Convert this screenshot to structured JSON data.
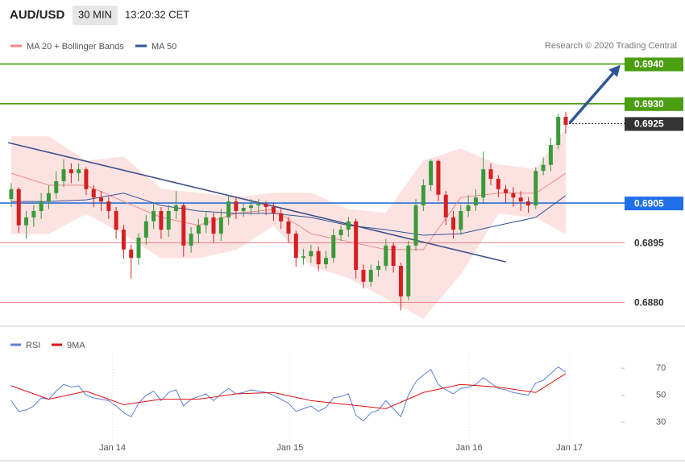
{
  "header": {
    "symbol": "AUD/USD",
    "timeframe": "30 MIN",
    "time": "13:20:32 CET",
    "credit": "Research © 2020 Trading Central"
  },
  "chart_data": [
    {
      "type": "candlestick",
      "ylim": [
        0.6874,
        0.6948
      ],
      "xlim": [
        -1.5,
        81.85
      ],
      "candles": [
        [
          0.6906,
          0.691,
          0.6904,
          0.69085
        ],
        [
          0.69085,
          0.6909,
          0.68975,
          0.68994
        ],
        [
          0.68994,
          0.6903,
          0.6896,
          0.69014
        ],
        [
          0.69014,
          0.69045,
          0.6899,
          0.6903
        ],
        [
          0.6903,
          0.69075,
          0.6901,
          0.69054
        ],
        [
          0.69054,
          0.69095,
          0.69035,
          0.69075
        ],
        [
          0.69075,
          0.6913,
          0.6906,
          0.69105
        ],
        [
          0.69105,
          0.6916,
          0.6909,
          0.69135
        ],
        [
          0.69135,
          0.6915,
          0.691,
          0.69125
        ],
        [
          0.69125,
          0.6915,
          0.69105,
          0.69135
        ],
        [
          0.69135,
          0.6914,
          0.6907,
          0.69085
        ],
        [
          0.69085,
          0.69095,
          0.6904,
          0.69064
        ],
        [
          0.69064,
          0.6908,
          0.6903,
          0.69054
        ],
        [
          0.69054,
          0.69065,
          0.6901,
          0.6903
        ],
        [
          0.6903,
          0.6904,
          0.6896,
          0.68983
        ],
        [
          0.68983,
          0.68995,
          0.6891,
          0.68933
        ],
        [
          0.68933,
          0.68945,
          0.6886,
          0.68912
        ],
        [
          0.68912,
          0.68975,
          0.68895,
          0.68963
        ],
        [
          0.68963,
          0.6902,
          0.68945,
          0.69004
        ],
        [
          0.69004,
          0.6905,
          0.68985,
          0.6903
        ],
        [
          0.6903,
          0.6904,
          0.6896,
          0.68983
        ],
        [
          0.68983,
          0.69045,
          0.68965,
          0.6903
        ],
        [
          0.6903,
          0.6908,
          0.6901,
          0.69044
        ],
        [
          0.69044,
          0.6905,
          0.68915,
          0.68943
        ],
        [
          0.68943,
          0.6899,
          0.68925,
          0.68973
        ],
        [
          0.68973,
          0.6901,
          0.6895,
          0.68994
        ],
        [
          0.68994,
          0.6903,
          0.68975,
          0.69014
        ],
        [
          0.69014,
          0.69025,
          0.6895,
          0.68973
        ],
        [
          0.68973,
          0.69035,
          0.68955,
          0.69014
        ],
        [
          0.69014,
          0.6907,
          0.68995,
          0.69054
        ],
        [
          0.69054,
          0.69065,
          0.6901,
          0.6903
        ],
        [
          0.6903,
          0.6905,
          0.69015,
          0.69038
        ],
        [
          0.69038,
          0.6906,
          0.6902,
          0.69044
        ],
        [
          0.69044,
          0.6906,
          0.69025,
          0.69048
        ],
        [
          0.69048,
          0.69055,
          0.6902,
          0.6904
        ],
        [
          0.6904,
          0.6905,
          0.69005,
          0.69024
        ],
        [
          0.69024,
          0.69035,
          0.68985,
          0.69004
        ],
        [
          0.69004,
          0.69015,
          0.6895,
          0.68973
        ],
        [
          0.68973,
          0.6898,
          0.6889,
          0.68912
        ],
        [
          0.68912,
          0.68935,
          0.68895,
          0.68916
        ],
        [
          0.68916,
          0.68945,
          0.689,
          0.68929
        ],
        [
          0.68929,
          0.6894,
          0.6888,
          0.68896
        ],
        [
          0.68896,
          0.6893,
          0.68885,
          0.68912
        ],
        [
          0.68912,
          0.68985,
          0.689,
          0.68969
        ],
        [
          0.68969,
          0.68995,
          0.68955,
          0.68983
        ],
        [
          0.68983,
          0.69015,
          0.68965,
          0.69004
        ],
        [
          0.69004,
          0.6901,
          0.6886,
          0.68882
        ],
        [
          0.68882,
          0.68895,
          0.68835,
          0.68852
        ],
        [
          0.68852,
          0.68895,
          0.6884,
          0.68882
        ],
        [
          0.68882,
          0.68905,
          0.68865,
          0.68892
        ],
        [
          0.68892,
          0.6896,
          0.6888,
          0.68943
        ],
        [
          0.68943,
          0.6895,
          0.68875,
          0.68892
        ],
        [
          0.68892,
          0.689,
          0.6878,
          0.68815
        ],
        [
          0.68815,
          0.68955,
          0.68805,
          0.68943
        ],
        [
          0.68943,
          0.6906,
          0.6893,
          0.69044
        ],
        [
          0.69044,
          0.6911,
          0.6903,
          0.69095
        ],
        [
          0.69095,
          0.6916,
          0.6908,
          0.69156
        ],
        [
          0.69156,
          0.6916,
          0.69055,
          0.69071
        ],
        [
          0.69071,
          0.6908,
          0.68995,
          0.69014
        ],
        [
          0.69014,
          0.6903,
          0.6896,
          0.68983
        ],
        [
          0.68983,
          0.69045,
          0.6897,
          0.6903
        ],
        [
          0.6903,
          0.6907,
          0.69015,
          0.69044
        ],
        [
          0.69044,
          0.69085,
          0.6903,
          0.69064
        ],
        [
          0.69064,
          0.6918,
          0.6905,
          0.69135
        ],
        [
          0.69135,
          0.6915,
          0.69095,
          0.69111
        ],
        [
          0.69111,
          0.6912,
          0.69065,
          0.69085
        ],
        [
          0.69085,
          0.69095,
          0.6905,
          0.69075
        ],
        [
          0.69075,
          0.6909,
          0.6904,
          0.69064
        ],
        [
          0.69064,
          0.6908,
          0.6903,
          0.69054
        ],
        [
          0.69054,
          0.69065,
          0.69025,
          0.69044
        ],
        [
          0.69044,
          0.6914,
          0.69035,
          0.69131
        ],
        [
          0.69131,
          0.69165,
          0.6912,
          0.69146
        ],
        [
          0.69146,
          0.69215,
          0.6913,
          0.69196
        ],
        [
          0.69196,
          0.69275,
          0.69185,
          0.69267
        ],
        [
          0.69267,
          0.6928,
          0.69225,
          0.69247
        ]
      ],
      "up_color": "#3a9a3a",
      "down_color": "#d42020",
      "series": [
        {
          "name": "MA 20 + Bollinger Bands",
          "color": "#f08a8a",
          "band_color": "#fde2e2",
          "x": [
            0,
            5,
            10,
            15,
            20,
            25,
            30,
            35,
            40,
            45,
            50,
            55,
            60,
            65,
            70,
            74
          ],
          "values": [
            0.69125,
            0.69095,
            0.69095,
            0.69054,
            0.69014,
            0.68994,
            0.69024,
            0.69034,
            0.68973,
            0.68953,
            0.68933,
            0.68933,
            0.69064,
            0.69075,
            0.69075,
            0.69125
          ],
          "upper": [
            0.69217,
            0.69217,
            0.69156,
            0.69166,
            0.69085,
            0.69075,
            0.69064,
            0.69075,
            0.69075,
            0.69034,
            0.69024,
            0.69156,
            0.69186,
            0.69146,
            0.69135,
            0.69237
          ],
          "lower": [
            0.68973,
            0.68973,
            0.69024,
            0.68973,
            0.68912,
            0.68912,
            0.68933,
            0.68994,
            0.68892,
            0.68862,
            0.68811,
            0.6876,
            0.68872,
            0.69024,
            0.69014,
            0.68973
          ]
        },
        {
          "name": "MA 50",
          "color": "#2f5597",
          "x": [
            0,
            5,
            10,
            15,
            20,
            25,
            30,
            35,
            40,
            45,
            50,
            55,
            60,
            65,
            70,
            74
          ],
          "values": [
            0.69054,
            0.69054,
            0.69058,
            0.69075,
            0.69044,
            0.6903,
            0.69024,
            0.69024,
            0.69014,
            0.68994,
            0.68983,
            0.68969,
            0.68973,
            0.68994,
            0.69014,
            0.69069
          ]
        }
      ],
      "trendline": {
        "x": [
          -0.4,
          66
        ],
        "y": [
          0.69202,
          0.68902
        ],
        "color": "#3d4f8a"
      },
      "arrow": {
        "x": [
          74.5,
          81.3
        ],
        "y": [
          0.69251,
          0.69398
        ],
        "color": "#2f5597"
      },
      "levels": [
        {
          "value": 0.694,
          "label": "0.6940",
          "color": "#4a9e10",
          "style": "solid",
          "label_bg": "#4a9e10"
        },
        {
          "value": 0.693,
          "label": "0.6930",
          "color": "#4a9e10",
          "style": "solid",
          "label_bg": "#4a9e10"
        },
        {
          "value": 0.6925,
          "label": "0.6925",
          "color": "#333333",
          "style": "dotted",
          "label_bg": "#333333"
        },
        {
          "value": 0.6905,
          "label": "0.6905",
          "color": "#2d6fd6",
          "style": "solid",
          "label_bg": "#1f6fe8"
        },
        {
          "value": 0.6895,
          "label": "0.6895",
          "color": "#e88080",
          "style": "solid"
        },
        {
          "value": 0.688,
          "label": "0.6880",
          "color": "#e88080",
          "style": "solid"
        }
      ]
    },
    {
      "type": "line",
      "ylim": [
        2,
        88
      ],
      "yticks": [
        30,
        50,
        70
      ],
      "xlim": [
        -1.5,
        81.85
      ],
      "xticks": [
        {
          "value": 13.5,
          "label": "Jan 14"
        },
        {
          "value": 37.2,
          "label": "Jan 15"
        },
        {
          "value": 61.1,
          "label": "Jan 16"
        },
        {
          "value": 74.5,
          "label": "Jan 17"
        }
      ],
      "series": [
        {
          "name": "RSI",
          "color": "#5b80d8",
          "values": [
            46,
            38,
            39,
            42,
            48,
            47,
            53,
            58,
            56,
            57,
            50,
            48,
            47,
            46,
            42,
            37,
            34,
            44,
            50,
            53,
            46,
            52,
            54,
            42,
            47,
            49,
            51,
            46,
            51,
            55,
            51,
            52,
            54,
            53,
            52,
            50,
            47,
            44,
            38,
            40,
            42,
            38,
            41,
            48,
            49,
            51,
            35,
            31,
            37,
            39,
            46,
            40,
            34,
            50,
            60,
            65,
            69,
            58,
            54,
            51,
            55,
            56,
            58,
            63,
            59,
            55,
            54,
            52,
            51,
            50,
            59,
            61,
            66,
            71,
            67
          ]
        },
        {
          "name": "9MA",
          "color": "#e01010",
          "x": [
            0,
            5,
            10,
            15,
            20,
            25,
            30,
            35,
            40,
            45,
            50,
            55,
            60,
            65,
            70,
            74
          ],
          "values": [
            57,
            47,
            53,
            43,
            47,
            47,
            51,
            52,
            46,
            43,
            40,
            52,
            58,
            56,
            52,
            66
          ]
        }
      ]
    }
  ]
}
